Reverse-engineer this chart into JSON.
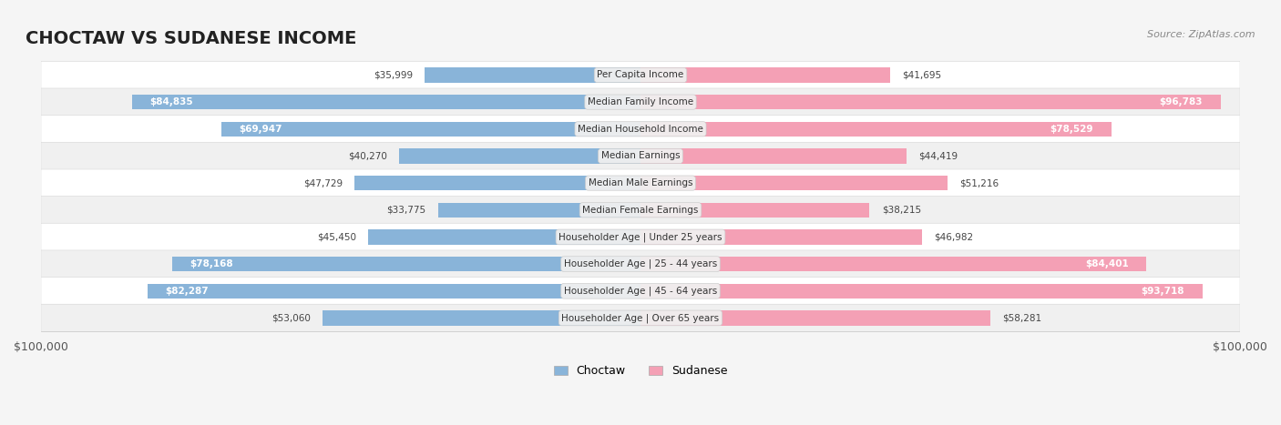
{
  "title": "CHOCTAW VS SUDANESE INCOME",
  "source": "Source: ZipAtlas.com",
  "categories": [
    "Per Capita Income",
    "Median Family Income",
    "Median Household Income",
    "Median Earnings",
    "Median Male Earnings",
    "Median Female Earnings",
    "Householder Age | Under 25 years",
    "Householder Age | 25 - 44 years",
    "Householder Age | 45 - 64 years",
    "Householder Age | Over 65 years"
  ],
  "choctaw_values": [
    35999,
    84835,
    69947,
    40270,
    47729,
    33775,
    45450,
    78168,
    82287,
    53060
  ],
  "sudanese_values": [
    41695,
    96783,
    78529,
    44419,
    51216,
    38215,
    46982,
    84401,
    93718,
    58281
  ],
  "choctaw_labels": [
    "$35,999",
    "$84,835",
    "$69,947",
    "$40,270",
    "$47,729",
    "$33,775",
    "$45,450",
    "$78,168",
    "$82,287",
    "$53,060"
  ],
  "sudanese_labels": [
    "$41,695",
    "$96,783",
    "$78,529",
    "$44,419",
    "$51,216",
    "$38,215",
    "$46,982",
    "$84,401",
    "$93,718",
    "$58,281"
  ],
  "choctaw_color": "#89b4d9",
  "sudanese_color": "#f4a0b5",
  "choctaw_color_dark": "#6699cc",
  "sudanese_color_dark": "#ee82a0",
  "max_value": 100000,
  "bg_color": "#f5f5f5",
  "row_bg_color": "#ffffff",
  "row_alt_color": "#f0f0f0",
  "label_bg_color": "#f0f0f0",
  "title_fontsize": 14,
  "bar_height": 0.55,
  "legend_choctaw": "Choctaw",
  "legend_sudanese": "Sudanese"
}
